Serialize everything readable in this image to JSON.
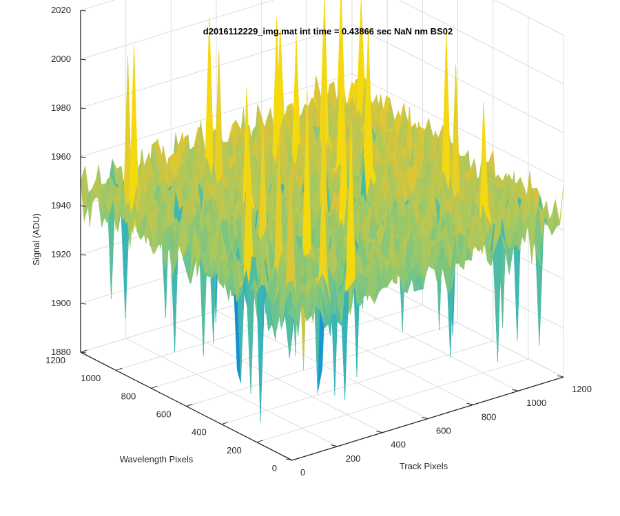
{
  "chart_data": {
    "type": "surface",
    "title": "d2016112229_img.mat int time = 0.43866 sec  NaN nm BS02",
    "xlabel": "Track Pixels",
    "ylabel": "Wavelength Pixels",
    "zlabel": "Signal (ADU)",
    "xlim": [
      0,
      1200
    ],
    "ylim": [
      0,
      1200
    ],
    "zlim": [
      1880,
      2020
    ],
    "x_ticks": [
      "0",
      "200",
      "400",
      "600",
      "800",
      "1000",
      "1200"
    ],
    "y_ticks": [
      "0",
      "200",
      "400",
      "600",
      "800",
      "1000",
      "1200"
    ],
    "z_ticks": [
      "1880",
      "1900",
      "1920",
      "1940",
      "1960",
      "1980",
      "2000",
      "2020"
    ],
    "grid": true,
    "colormap": [
      "#0072bd",
      "#1e9fd6",
      "#3cb6b4",
      "#6ec48c",
      "#a9c85e",
      "#d8c43c",
      "#f5d90f"
    ],
    "surface_summary": {
      "mean": 1945,
      "noise_amplitude": 12,
      "min_spike": 1888,
      "max_spike": 2012
    }
  }
}
